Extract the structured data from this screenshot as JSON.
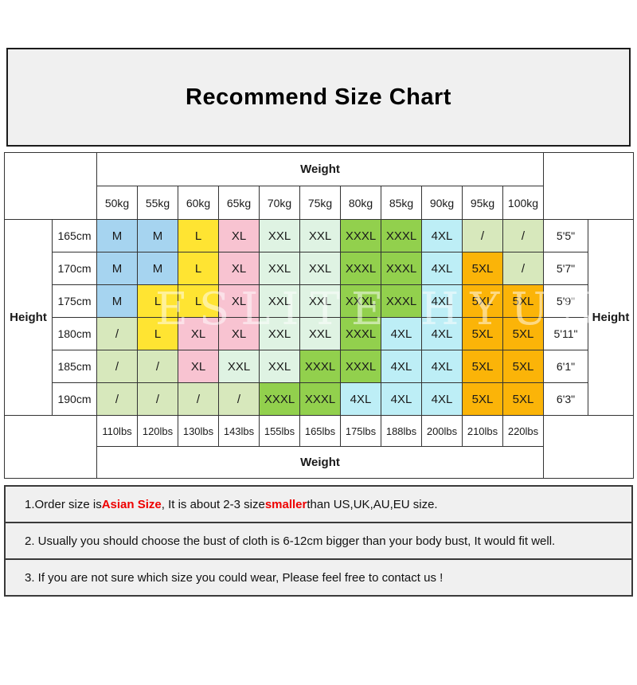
{
  "title": "Recommend Size Chart",
  "watermark": "ESLITE HYUN",
  "colors": {
    "panel_bg": "#f0f0f0",
    "grid_line": "#333333",
    "highlight_red": "#ee0000"
  },
  "size_colors": {
    "M": "#a6d4f0",
    "L": "#ffe432",
    "XL": "#f8c3d1",
    "XXL": "#dff3e3",
    "XXXL": "#92d04d",
    "4XL": "#bdeef6",
    "5XL": "#fbb408",
    "/": "#d7e8bc"
  },
  "table": {
    "weight_header_top": "Weight",
    "weight_header_bottom": "Weight",
    "height_header_left": "Height",
    "height_header_right": "Height",
    "kg_columns": [
      "50kg",
      "55kg",
      "60kg",
      "65kg",
      "70kg",
      "75kg",
      "80kg",
      "85kg",
      "90kg",
      "95kg",
      "100kg"
    ],
    "lbs_columns": [
      "110lbs",
      "120lbs",
      "130lbs",
      "143lbs",
      "155lbs",
      "165lbs",
      "175lbs",
      "188lbs",
      "200lbs",
      "210lbs",
      "220lbs"
    ],
    "rows": [
      {
        "cm": "165cm",
        "ft": "5'5\"",
        "sizes": [
          "M",
          "M",
          "L",
          "XL",
          "XXL",
          "XXL",
          "XXXL",
          "XXXL",
          "4XL",
          "/",
          "/"
        ]
      },
      {
        "cm": "170cm",
        "ft": "5'7\"",
        "sizes": [
          "M",
          "M",
          "L",
          "XL",
          "XXL",
          "XXL",
          "XXXL",
          "XXXL",
          "4XL",
          "5XL",
          "/"
        ]
      },
      {
        "cm": "175cm",
        "ft": "5'9\"",
        "sizes": [
          "M",
          "L",
          "L",
          "XL",
          "XXL",
          "XXL",
          "XXXL",
          "XXXL",
          "4XL",
          "5XL",
          "5XL"
        ]
      },
      {
        "cm": "180cm",
        "ft": "5'11\"",
        "sizes": [
          "/",
          "L",
          "XL",
          "XL",
          "XXL",
          "XXL",
          "XXXL",
          "4XL",
          "4XL",
          "5XL",
          "5XL"
        ]
      },
      {
        "cm": "185cm",
        "ft": "6'1\"",
        "sizes": [
          "/",
          "/",
          "XL",
          "XXL",
          "XXL",
          "XXXL",
          "XXXL",
          "4XL",
          "4XL",
          "5XL",
          "5XL"
        ]
      },
      {
        "cm": "190cm",
        "ft": "6'3\"",
        "sizes": [
          "/",
          "/",
          "/",
          "/",
          "XXXL",
          "XXXL",
          "4XL",
          "4XL",
          "4XL",
          "5XL",
          "5XL"
        ]
      }
    ]
  },
  "notes": [
    {
      "parts": [
        {
          "text": "1.Order size is "
        },
        {
          "text": "Asian Size",
          "highlight": true
        },
        {
          "text": ", It is about 2-3 size "
        },
        {
          "text": "smaller",
          "highlight": true
        },
        {
          "text": " than US,UK,AU,EU size."
        }
      ]
    },
    {
      "parts": [
        {
          "text": "2. Usually you should choose the bust of cloth is 6-12cm bigger than your body bust, It would fit well."
        }
      ]
    },
    {
      "parts": [
        {
          "text": "3. If you are not sure which size you could wear, Please feel free to contact us !"
        }
      ]
    }
  ]
}
